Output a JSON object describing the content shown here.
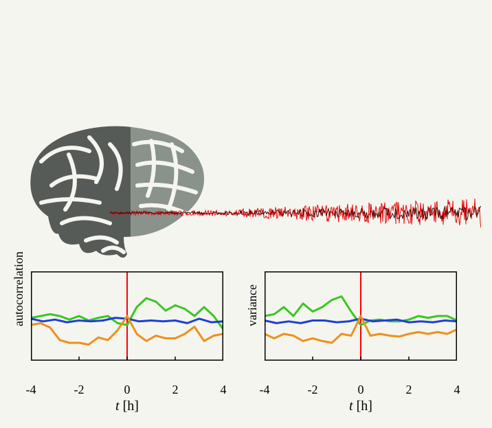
{
  "background_color": "#f5f5f0",
  "brain": {
    "fill_dark": "#575b58",
    "fill_light": "#8a928c",
    "stroke": "#f5f5f0"
  },
  "eeg": {
    "color": "#e90606",
    "dark_overlay": "#3a0606"
  },
  "charts": {
    "xlim": [
      -4,
      4
    ],
    "xticks": [
      -4,
      -2,
      0,
      2,
      4
    ],
    "xlabel": "t",
    "xunit": "[h]",
    "event_line_x": 0,
    "event_line_color": "#ff0000",
    "frame_color": "#000000",
    "frame_stroke": 1.5,
    "line_width": 3,
    "axis_fontsize": 18,
    "label_fontsize": 20,
    "autocorr": {
      "ylabel": "autocorrelation",
      "series": {
        "green": {
          "color": "#39c71f",
          "points": [
            [
              -4,
              0.48
            ],
            [
              -3.6,
              0.5
            ],
            [
              -3.2,
              0.52
            ],
            [
              -2.8,
              0.5
            ],
            [
              -2.4,
              0.46
            ],
            [
              -2,
              0.5
            ],
            [
              -1.6,
              0.45
            ],
            [
              -1.2,
              0.48
            ],
            [
              -0.8,
              0.5
            ],
            [
              -0.4,
              0.42
            ],
            [
              0,
              0.4
            ],
            [
              0.4,
              0.6
            ],
            [
              0.8,
              0.7
            ],
            [
              1.2,
              0.66
            ],
            [
              1.6,
              0.56
            ],
            [
              2,
              0.62
            ],
            [
              2.4,
              0.58
            ],
            [
              2.8,
              0.5
            ],
            [
              3.2,
              0.6
            ],
            [
              3.6,
              0.5
            ],
            [
              4,
              0.35
            ]
          ]
        },
        "blue": {
          "color": "#1c3fd6",
          "points": [
            [
              -4,
              0.47
            ],
            [
              -3.5,
              0.44
            ],
            [
              -3,
              0.46
            ],
            [
              -2.5,
              0.43
            ],
            [
              -2,
              0.45
            ],
            [
              -1.5,
              0.44
            ],
            [
              -1,
              0.45
            ],
            [
              -0.5,
              0.48
            ],
            [
              0,
              0.47
            ],
            [
              0.5,
              0.44
            ],
            [
              1,
              0.45
            ],
            [
              1.5,
              0.44
            ],
            [
              2,
              0.45
            ],
            [
              2.5,
              0.42
            ],
            [
              3,
              0.47
            ],
            [
              3.5,
              0.43
            ],
            [
              4,
              0.44
            ]
          ]
        },
        "orange": {
          "color": "#f09018",
          "points": [
            [
              -4,
              0.4
            ],
            [
              -3.6,
              0.42
            ],
            [
              -3.2,
              0.37
            ],
            [
              -2.8,
              0.23
            ],
            [
              -2.4,
              0.2
            ],
            [
              -2,
              0.2
            ],
            [
              -1.6,
              0.18
            ],
            [
              -1.2,
              0.26
            ],
            [
              -0.8,
              0.23
            ],
            [
              -0.4,
              0.34
            ],
            [
              0,
              0.5
            ],
            [
              0.4,
              0.3
            ],
            [
              0.8,
              0.22
            ],
            [
              1.2,
              0.28
            ],
            [
              1.6,
              0.25
            ],
            [
              2,
              0.25
            ],
            [
              2.4,
              0.3
            ],
            [
              2.8,
              0.38
            ],
            [
              3.2,
              0.22
            ],
            [
              3.6,
              0.28
            ],
            [
              4,
              0.3
            ]
          ]
        }
      }
    },
    "variance": {
      "ylabel": "variance",
      "series": {
        "green": {
          "color": "#39c71f",
          "points": [
            [
              -4,
              0.5
            ],
            [
              -3.6,
              0.52
            ],
            [
              -3.2,
              0.6
            ],
            [
              -2.8,
              0.5
            ],
            [
              -2.4,
              0.64
            ],
            [
              -2,
              0.55
            ],
            [
              -1.6,
              0.6
            ],
            [
              -1.2,
              0.68
            ],
            [
              -0.8,
              0.72
            ],
            [
              -0.4,
              0.55
            ],
            [
              0,
              0.4
            ],
            [
              0.4,
              0.45
            ],
            [
              0.8,
              0.46
            ],
            [
              1.2,
              0.44
            ],
            [
              1.6,
              0.44
            ],
            [
              2,
              0.46
            ],
            [
              2.4,
              0.5
            ],
            [
              2.8,
              0.48
            ],
            [
              3.2,
              0.5
            ],
            [
              3.6,
              0.5
            ],
            [
              4,
              0.45
            ]
          ]
        },
        "blue": {
          "color": "#1c3fd6",
          "points": [
            [
              -4,
              0.45
            ],
            [
              -3.5,
              0.42
            ],
            [
              -3,
              0.44
            ],
            [
              -2.5,
              0.42
            ],
            [
              -2,
              0.45
            ],
            [
              -1.5,
              0.45
            ],
            [
              -1,
              0.43
            ],
            [
              -0.5,
              0.44
            ],
            [
              0,
              0.47
            ],
            [
              0.5,
              0.44
            ],
            [
              1,
              0.45
            ],
            [
              1.5,
              0.46
            ],
            [
              2,
              0.43
            ],
            [
              2.5,
              0.44
            ],
            [
              3,
              0.43
            ],
            [
              3.5,
              0.45
            ],
            [
              4,
              0.44
            ]
          ]
        },
        "orange": {
          "color": "#f09018",
          "points": [
            [
              -4,
              0.3
            ],
            [
              -3.6,
              0.25
            ],
            [
              -3.2,
              0.3
            ],
            [
              -2.8,
              0.28
            ],
            [
              -2.4,
              0.22
            ],
            [
              -2,
              0.25
            ],
            [
              -1.6,
              0.22
            ],
            [
              -1.2,
              0.2
            ],
            [
              -0.8,
              0.3
            ],
            [
              -0.4,
              0.28
            ],
            [
              0,
              0.5
            ],
            [
              0.4,
              0.28
            ],
            [
              0.8,
              0.3
            ],
            [
              1.2,
              0.28
            ],
            [
              1.6,
              0.27
            ],
            [
              2,
              0.3
            ],
            [
              2.4,
              0.32
            ],
            [
              2.8,
              0.3
            ],
            [
              3.2,
              0.32
            ],
            [
              3.6,
              0.3
            ],
            [
              4,
              0.35
            ]
          ]
        }
      }
    }
  }
}
